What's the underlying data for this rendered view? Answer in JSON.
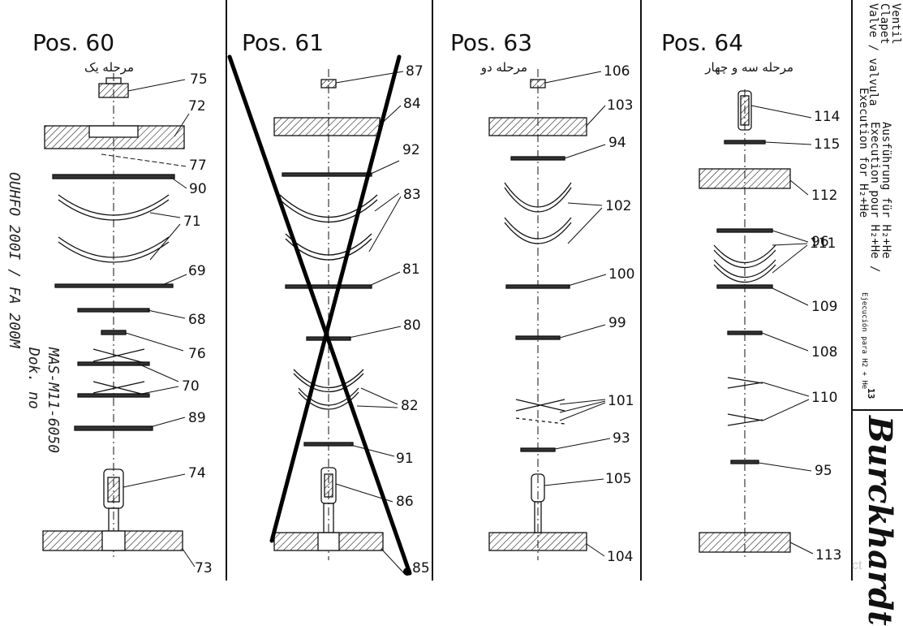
{
  "columns": [
    {
      "title": "Pos. 60",
      "stage": "مرحله یک"
    },
    {
      "title": "Pos. 61",
      "stage": ""
    },
    {
      "title": "Pos. 63",
      "stage": "مرحله دو"
    },
    {
      "title": "Pos. 64",
      "stage": "مرحله سه و چهار"
    }
  ],
  "callouts": {
    "c60": [
      "75",
      "72",
      "77",
      "90",
      "71",
      "69",
      "68",
      "76",
      "70",
      "89",
      "74",
      "73"
    ],
    "c61": [
      "87",
      "84",
      "92",
      "83",
      "81",
      "80",
      "82",
      "91",
      "86",
      "85"
    ],
    "c63": [
      "106",
      "103",
      "94",
      "102",
      "100",
      "99",
      "101",
      "93",
      "105",
      "104"
    ],
    "c64": [
      "114",
      "115",
      "112",
      "96",
      "111",
      "109",
      "108",
      "110",
      "95",
      "113"
    ]
  },
  "side_panel": {
    "valve_lines": [
      "Ventil",
      "Clapet",
      "Valve / valvula"
    ],
    "execution_lines": [
      "Ausführung für H₂+He",
      "Execution pour H₂+He /",
      "Execution for H₂+He"
    ],
    "spanish_note": "Ejecución para H2 + He",
    "page_no": "13",
    "brand": "Burckhardt"
  },
  "handwritten": {
    "line1": "OUHFO 200I / FA 200M",
    "line2": "Dok. no",
    "line3": "MAS-M11-6050"
  },
  "watermark": "ct"
}
